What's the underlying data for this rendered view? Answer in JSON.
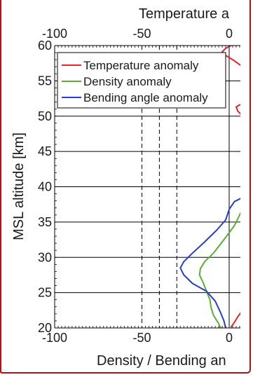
{
  "chart_data": {
    "type": "line",
    "top_axis_label": "Temperature a",
    "bottom_axis_label": "Density / Bending an",
    "ylabel": "MSL altitude [km]",
    "xlim": [
      -100,
      7
    ],
    "ylim": [
      20,
      60
    ],
    "top_ticks": [
      "-100",
      "-50",
      "0"
    ],
    "bottom_ticks": [
      "-100",
      "-50",
      "0"
    ],
    "y_ticks": [
      "20",
      "25",
      "30",
      "35",
      "40",
      "45",
      "50",
      "55",
      "60"
    ],
    "grid": "horizontal",
    "legend": {
      "placement": "top-left",
      "entries": [
        "Temperature anomaly",
        "Density anomaly",
        "Bending angle anomaly"
      ]
    },
    "reference_lines_dashed_x": [
      -50,
      -40,
      -30
    ],
    "reference_line_solid_x": 0,
    "series": [
      {
        "name": "Temperature anomaly",
        "color": "#e8242b",
        "segments": [
          [
            [
              6,
              61
            ],
            [
              1,
              60
            ],
            [
              -2,
              59.6
            ],
            [
              -4,
              59.1
            ],
            [
              -2,
              58.6
            ],
            [
              2,
              58.0
            ],
            [
              6,
              57.3
            ],
            [
              11,
              56.5
            ]
          ],
          [
            [
              12,
              51.8
            ],
            [
              6,
              51.6
            ],
            [
              4,
              51.3
            ],
            [
              5,
              50.7
            ],
            [
              7,
              50.2
            ],
            [
              10,
              49.9
            ]
          ],
          [
            [
              11,
              23.5
            ],
            [
              8,
              22.6
            ],
            [
              5,
              21.6
            ],
            [
              3,
              20.8
            ],
            [
              1,
              20.1
            ]
          ]
        ]
      },
      {
        "name": "Density anomaly",
        "color": "#5aae32",
        "segments": [
          [
            [
              7,
              36.5
            ],
            [
              3,
              34.5
            ],
            [
              -3,
              32.5
            ],
            [
              -9,
              30.6
            ],
            [
              -14,
              29.4
            ],
            [
              -16.5,
              28.4
            ],
            [
              -17,
              27.5
            ],
            [
              -15,
              26.5
            ],
            [
              -13,
              25.2
            ],
            [
              -11,
              24.0
            ],
            [
              -10.5,
              23.0
            ],
            [
              -9,
              21.8
            ],
            [
              -6,
              20.6
            ],
            [
              -5,
              20.0
            ]
          ]
        ]
      },
      {
        "name": "Bending angle anomaly",
        "color": "#2a3bd4",
        "segments": [
          [
            [
              7,
              38.4
            ],
            [
              3,
              37.9
            ],
            [
              0,
              36.8
            ],
            [
              -2,
              35.3
            ],
            [
              -7,
              33.9
            ],
            [
              -14,
              32.2
            ],
            [
              -21,
              30.6
            ],
            [
              -26,
              29.4
            ],
            [
              -28,
              28.5
            ],
            [
              -26,
              27.5
            ],
            [
              -21,
              26.3
            ],
            [
              -13,
              25.2
            ],
            [
              -8,
              23.8
            ],
            [
              -5,
              22.2
            ],
            [
              -3,
              21.0
            ],
            [
              -2,
              20.0
            ]
          ]
        ]
      }
    ]
  },
  "colors": {
    "frame_accent": "#b3121b",
    "grid": "#000000",
    "axis": "#000000"
  }
}
